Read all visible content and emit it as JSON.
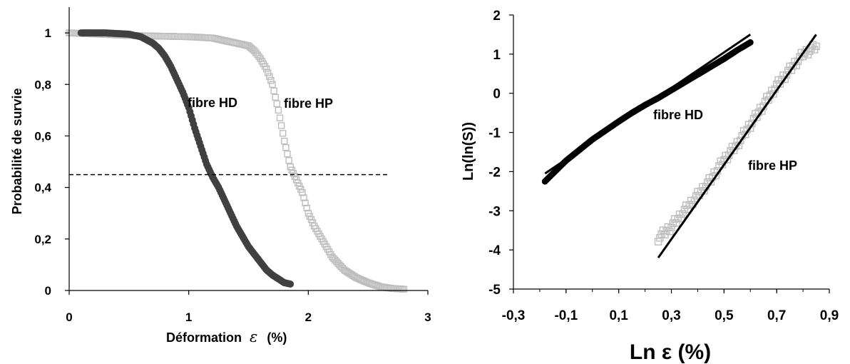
{
  "chart_data": [
    {
      "type": "scatter",
      "title": "",
      "xlabel": "Déformation",
      "xlabel_symbol": "ε",
      "xlabel_unit": "(%)",
      "ylabel": "Probabilité de survie",
      "xlim": [
        0,
        3
      ],
      "ylim": [
        0,
        1.1
      ],
      "xticks": [
        "0",
        "1",
        "2",
        "3"
      ],
      "yticks": [
        "0",
        "0,2",
        "0,4",
        "0,6",
        "0,8",
        "1"
      ],
      "grid": false,
      "annotations": [
        "fibre HD",
        "fibre HP"
      ],
      "reference_line_y": 0.45,
      "series": [
        {
          "name": "fibre HD",
          "marker": "filled-circle",
          "color": "#404040",
          "x": [
            0.1,
            0.3,
            0.5,
            0.6,
            0.7,
            0.75,
            0.8,
            0.85,
            0.9,
            0.95,
            1.0,
            1.05,
            1.1,
            1.15,
            1.2,
            1.25,
            1.3,
            1.35,
            1.4,
            1.45,
            1.5,
            1.55,
            1.6,
            1.65,
            1.7,
            1.75,
            1.8,
            1.85
          ],
          "y": [
            1.0,
            1.0,
            0.995,
            0.985,
            0.96,
            0.94,
            0.91,
            0.87,
            0.82,
            0.77,
            0.71,
            0.63,
            0.56,
            0.49,
            0.44,
            0.4,
            0.35,
            0.3,
            0.25,
            0.21,
            0.17,
            0.14,
            0.11,
            0.08,
            0.06,
            0.045,
            0.03,
            0.025
          ]
        },
        {
          "name": "fibre HP",
          "marker": "open-square",
          "color": "#bdbdbd",
          "x": [
            0.0,
            0.5,
            1.0,
            1.2,
            1.4,
            1.5,
            1.55,
            1.6,
            1.65,
            1.7,
            1.75,
            1.8,
            1.85,
            1.9,
            1.95,
            2.0,
            2.05,
            2.1,
            2.15,
            2.2,
            2.3,
            2.4,
            2.5,
            2.6,
            2.7,
            2.8
          ],
          "y": [
            1.0,
            0.99,
            0.985,
            0.98,
            0.96,
            0.95,
            0.93,
            0.9,
            0.86,
            0.8,
            0.7,
            0.58,
            0.48,
            0.43,
            0.38,
            0.3,
            0.25,
            0.21,
            0.17,
            0.13,
            0.08,
            0.05,
            0.03,
            0.015,
            0.008,
            0.005
          ]
        }
      ]
    },
    {
      "type": "scatter",
      "title": "",
      "xlabel": "Ln ε (%)",
      "ylabel": "Ln(ln(S))",
      "xlim": [
        -0.3,
        0.9
      ],
      "ylim": [
        -5,
        2
      ],
      "xticks": [
        "-0,3",
        "-0,1",
        "0,1",
        "0,3",
        "0,5",
        "0,7",
        "0,9"
      ],
      "yticks": [
        "-5",
        "-4",
        "-3",
        "-2",
        "-1",
        "0",
        "1",
        "2"
      ],
      "grid": false,
      "annotations": [
        "fibre HD",
        "fibre HP"
      ],
      "series": [
        {
          "name": "fibre HD",
          "marker": "filled-circle",
          "color": "#000000",
          "x": [
            -0.18,
            -0.15,
            -0.1,
            -0.05,
            0.0,
            0.05,
            0.1,
            0.15,
            0.2,
            0.25,
            0.3,
            0.35,
            0.4,
            0.45,
            0.5,
            0.55,
            0.6
          ],
          "y": [
            -2.25,
            -2.05,
            -1.72,
            -1.45,
            -1.18,
            -0.95,
            -0.72,
            -0.5,
            -0.3,
            -0.12,
            0.08,
            0.28,
            0.48,
            0.68,
            0.88,
            1.1,
            1.3
          ]
        },
        {
          "name": "fibre HP",
          "marker": "open-square",
          "color": "#bdbdbd",
          "x": [
            0.25,
            0.3,
            0.35,
            0.4,
            0.45,
            0.5,
            0.55,
            0.6,
            0.65,
            0.7,
            0.75,
            0.8,
            0.85
          ],
          "y": [
            -3.7,
            -3.4,
            -3.0,
            -2.6,
            -2.2,
            -1.7,
            -1.3,
            -0.8,
            -0.3,
            0.2,
            0.6,
            1.0,
            1.2
          ]
        }
      ],
      "fit_lines": [
        {
          "series": "fibre HD",
          "x": [
            -0.18,
            0.6
          ],
          "y": [
            -2.05,
            1.5
          ]
        },
        {
          "series": "fibre HP",
          "x": [
            0.25,
            0.85
          ],
          "y": [
            -4.2,
            1.5
          ]
        }
      ]
    }
  ]
}
